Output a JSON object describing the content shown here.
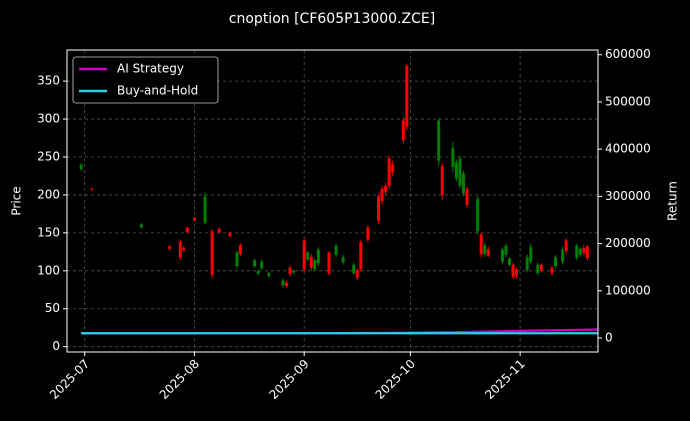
{
  "chart_data": {
    "type": "candlestick",
    "title": "cnoption [CF605P13000.ZCE]",
    "ylabel": "Price",
    "y2label": "Return",
    "x": [
      "2025-06-30",
      "2025-07-03",
      "2025-07-17",
      "2025-07-25",
      "2025-07-28",
      "2025-07-29",
      "2025-07-30",
      "2025-08-01",
      "2025-08-04",
      "2025-08-06",
      "2025-08-08",
      "2025-08-11",
      "2025-08-13",
      "2025-08-14",
      "2025-08-18",
      "2025-08-19",
      "2025-08-20",
      "2025-08-22",
      "2025-08-26",
      "2025-08-27",
      "2025-08-28",
      "2025-08-29",
      "2025-09-01",
      "2025-09-02",
      "2025-09-03",
      "2025-09-04",
      "2025-09-05",
      "2025-09-08",
      "2025-09-10",
      "2025-09-12",
      "2025-09-15",
      "2025-09-16",
      "2025-09-17",
      "2025-09-19",
      "2025-09-22",
      "2025-09-23",
      "2025-09-24",
      "2025-09-25",
      "2025-09-26",
      "2025-09-29",
      "2025-09-30",
      "2025-10-09",
      "2025-10-10",
      "2025-10-13",
      "2025-10-14",
      "2025-10-15",
      "2025-10-16",
      "2025-10-17",
      "2025-10-20",
      "2025-10-21",
      "2025-10-22",
      "2025-10-23",
      "2025-10-27",
      "2025-10-28",
      "2025-10-29",
      "2025-10-30",
      "2025-10-31",
      "2025-11-03",
      "2025-11-04",
      "2025-11-06",
      "2025-11-07",
      "2025-11-10",
      "2025-11-11",
      "2025-11-13",
      "2025-11-14",
      "2025-11-17",
      "2025-11-18",
      "2025-11-19",
      "2025-11-20"
    ],
    "open": [
      234,
      208,
      157,
      132,
      138,
      130,
      157,
      170,
      163,
      152,
      155,
      150,
      106,
      134,
      106,
      96,
      103,
      93,
      81,
      84,
      104,
      98,
      140,
      115,
      118,
      102,
      110,
      124,
      121,
      111,
      97,
      101,
      138,
      157,
      198,
      208,
      212,
      248,
      240,
      298,
      370,
      245,
      238,
      237,
      222,
      212,
      202,
      208,
      152,
      148,
      122,
      128,
      112,
      121,
      108,
      108,
      102,
      101,
      112,
      97,
      108,
      104,
      106,
      112,
      140,
      117,
      121,
      130,
      132
    ],
    "high": [
      242,
      209,
      163,
      134,
      141,
      133,
      158,
      171,
      203,
      155,
      157,
      151,
      126,
      136,
      116,
      102,
      115,
      99,
      90,
      87,
      107,
      102,
      142,
      126,
      122,
      116,
      131,
      126,
      136,
      121,
      111,
      103,
      141,
      160,
      201,
      212,
      216,
      252,
      245,
      302,
      373,
      301,
      242,
      270,
      247,
      252,
      232,
      211,
      198,
      150,
      137,
      132,
      131,
      136,
      118,
      111,
      104,
      121,
      136,
      111,
      110,
      106,
      121,
      132,
      143,
      136,
      131,
      134,
      134
    ],
    "low": [
      232,
      206,
      156,
      127,
      114,
      125,
      149,
      165,
      161,
      90,
      149,
      144,
      103,
      119,
      104,
      94,
      102,
      91,
      78,
      78,
      93,
      96,
      98,
      113,
      100,
      100,
      106,
      94,
      118,
      108,
      95,
      88,
      99,
      138,
      163,
      188,
      200,
      208,
      225,
      268,
      285,
      238,
      194,
      230,
      218,
      208,
      198,
      183,
      148,
      118,
      118,
      118,
      108,
      118,
      106,
      89,
      90,
      98,
      109,
      94,
      98,
      94,
      103,
      108,
      122,
      114,
      118,
      120,
      114
    ],
    "close": [
      240,
      207,
      161,
      129,
      118,
      127,
      151,
      167,
      198,
      95,
      151,
      146,
      124,
      122,
      114,
      100,
      112,
      97,
      87,
      80,
      96,
      100,
      102,
      124,
      104,
      114,
      128,
      97,
      133,
      118,
      108,
      91,
      102,
      141,
      166,
      192,
      204,
      212,
      230,
      272,
      290,
      298,
      200,
      262,
      243,
      248,
      228,
      187,
      195,
      122,
      134,
      120,
      128,
      133,
      116,
      92,
      94,
      118,
      131,
      108,
      100,
      97,
      118,
      128,
      126,
      133,
      129,
      124,
      117
    ],
    "up_color": "#008000",
    "down_color": "#ff0000",
    "series": [
      {
        "name": "AI Strategy",
        "color": "#cc00cc",
        "axis": "y2",
        "x": [
          "2025-06-30",
          "2025-08-01",
          "2025-09-01",
          "2025-10-01",
          "2025-10-15",
          "2025-11-01",
          "2025-11-23"
        ],
        "values": [
          10000,
          10000,
          10200,
          11000,
          12500,
          15000,
          18000
        ]
      },
      {
        "name": "Buy-and-Hold",
        "color": "#22d3e6",
        "axis": "y2",
        "x": [
          "2025-06-30",
          "2025-08-01",
          "2025-09-01",
          "2025-10-01",
          "2025-10-15",
          "2025-11-01",
          "2025-11-23"
        ],
        "values": [
          10000,
          10000,
          10000,
          10000,
          10000,
          10000,
          10000
        ]
      }
    ],
    "xlim": [
      "2025-06-26",
      "2025-11-23"
    ],
    "xticks": [
      {
        "value": "2025-07-01",
        "label": "2025-07"
      },
      {
        "value": "2025-08-01",
        "label": "2025-08"
      },
      {
        "value": "2025-09-01",
        "label": "2025-09"
      },
      {
        "value": "2025-10-01",
        "label": "2025-10"
      },
      {
        "value": "2025-11-01",
        "label": "2025-11"
      }
    ],
    "ylim": [
      -7,
      391
    ],
    "yticks": [
      0,
      50,
      100,
      150,
      200,
      250,
      300,
      350
    ],
    "y2lim": [
      -29700,
      610000
    ],
    "y2ticks": [
      0,
      100000,
      200000,
      300000,
      400000,
      500000,
      600000
    ],
    "grid": true,
    "legend": "upper left"
  }
}
